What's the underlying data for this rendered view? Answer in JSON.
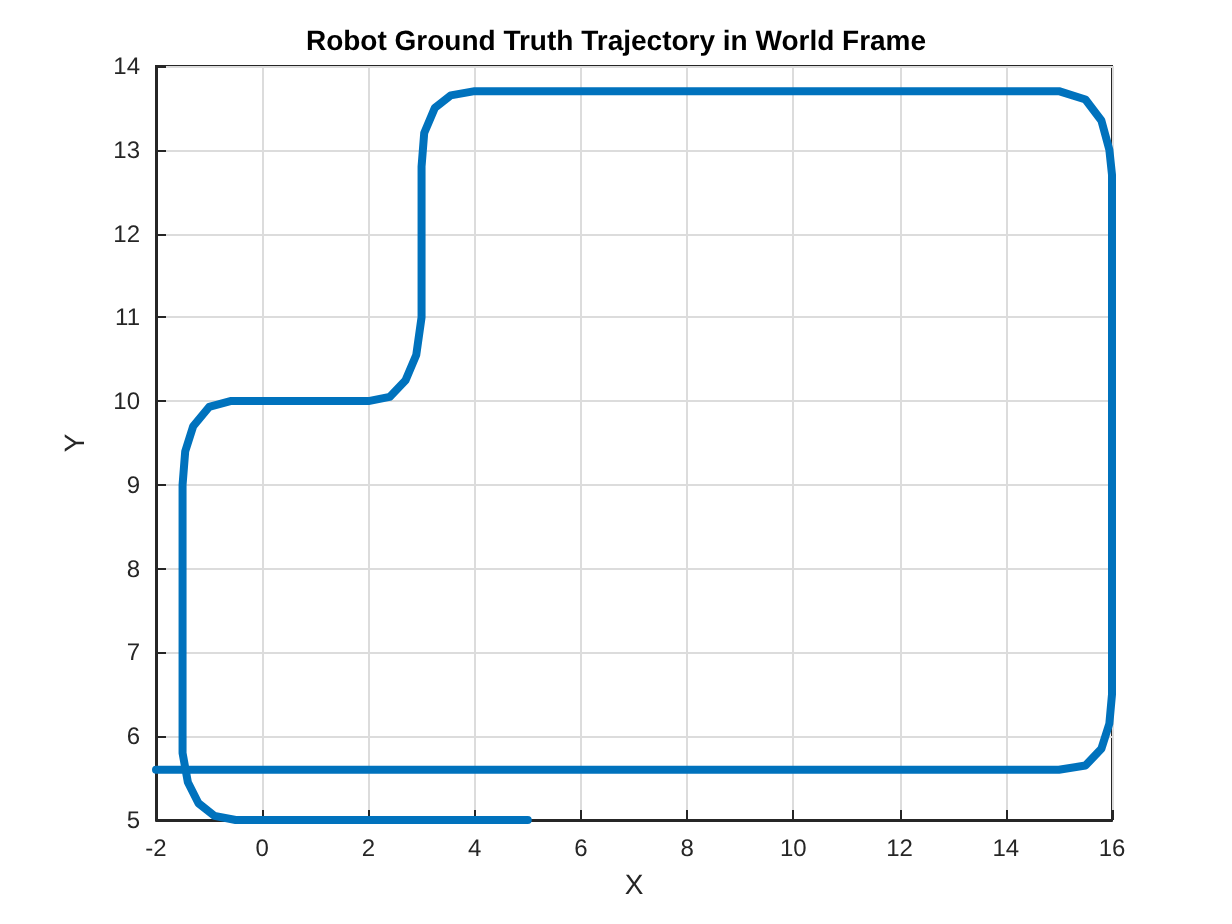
{
  "chart_data": {
    "type": "line",
    "title": "Robot Ground Truth Trajectory in World Frame",
    "xlabel": "X",
    "ylabel": "Y",
    "series": [
      {
        "color": "#0072bd",
        "x": [
          5,
          -0.5,
          -0.9,
          -1.2,
          -1.4,
          -1.5,
          -1.5,
          -1.45,
          -1.3,
          -1.0,
          -0.6,
          2,
          2.4,
          2.7,
          2.9,
          3,
          3,
          3.05,
          3.25,
          3.55,
          4,
          15,
          15.5,
          15.8,
          15.95,
          16,
          16,
          15.95,
          15.8,
          15.5,
          15,
          -2
        ],
        "values": [
          5,
          5,
          5.05,
          5.2,
          5.45,
          5.8,
          9,
          9.4,
          9.7,
          9.93,
          10,
          10,
          10.05,
          10.25,
          10.55,
          11,
          12.8,
          13.2,
          13.5,
          13.65,
          13.7,
          13.7,
          13.6,
          13.35,
          13.0,
          12.7,
          6.5,
          6.15,
          5.85,
          5.65,
          5.6,
          5.6
        ]
      }
    ],
    "xlim": [
      -2,
      16
    ],
    "xticks": [
      -2,
      0,
      2,
      4,
      6,
      8,
      10,
      12,
      14,
      16
    ],
    "ylim": [
      5,
      14
    ],
    "yticks": [
      5,
      6,
      7,
      8,
      9,
      10,
      11,
      12,
      13,
      14
    ],
    "grid": true,
    "marker": "none",
    "line_style": "solid"
  }
}
